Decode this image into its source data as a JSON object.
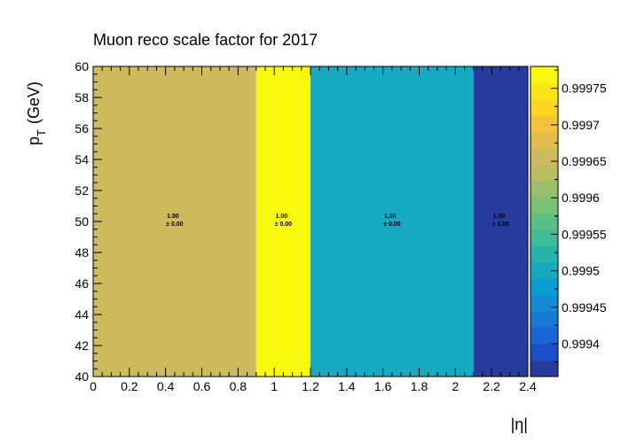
{
  "chart_data": {
    "type": "heatmap",
    "title": "Muon reco scale factor for 2017",
    "xlabel": "|η|",
    "ylabel": "p_T (GeV)",
    "ylabel_main": "p",
    "ylabel_sub": "T",
    "ylabel_unit": "(GeV)",
    "xlim": [
      0,
      2.4
    ],
    "ylim": [
      40,
      60
    ],
    "x_ticks": [
      0,
      0.2,
      0.4,
      0.6,
      0.8,
      1,
      1.2,
      1.4,
      1.6,
      1.8,
      2,
      2.2,
      2.4
    ],
    "x_tick_labels": [
      "0",
      "0.2",
      "0.4",
      "0.6",
      "0.8",
      "1",
      "1.2",
      "1.4",
      "1.6",
      "1.8",
      "2",
      "2.2",
      "2.4"
    ],
    "y_ticks": [
      40,
      42,
      44,
      46,
      48,
      50,
      52,
      54,
      56,
      58,
      60
    ],
    "y_tick_labels": [
      "40",
      "42",
      "44",
      "46",
      "48",
      "50",
      "52",
      "54",
      "56",
      "58",
      "60"
    ],
    "x_bin_edges": [
      0,
      0.9,
      1.2,
      2.1,
      2.4
    ],
    "y_bin_edges": [
      40,
      60
    ],
    "values": [
      [
        0.99966,
        0.99978,
        0.99949,
        0.99936
      ]
    ],
    "cell_labels": [
      {
        "value": "1.00",
        "error": "± 0.00"
      },
      {
        "value": "1.00",
        "error": "± 0.00"
      },
      {
        "value": "1.00",
        "error": "± 0.00"
      },
      {
        "value": "1.00",
        "error": "± 0.00"
      }
    ],
    "zlim": [
      0.999355,
      0.99978
    ],
    "z_ticks": [
      0.9994,
      0.99945,
      0.9995,
      0.99955,
      0.9996,
      0.99965,
      0.9997,
      0.99975
    ],
    "z_tick_labels": [
      "0.9994",
      "0.99945",
      "0.9995",
      "0.99955",
      "0.9996",
      "0.99965",
      "0.9997",
      "0.99975"
    ],
    "palette": [
      "#263d9e",
      "#1b50c9",
      "#1a64d5",
      "#1779d5",
      "#138bd4",
      "#0a9dcf",
      "#17a9c2",
      "#26b3ac",
      "#3dbb9a",
      "#5abf86",
      "#7bc177",
      "#9bbf6c",
      "#b8bc63",
      "#cdb95e",
      "#e1bb4c",
      "#f4c338",
      "#fdd420",
      "#fbe716",
      "#f8f90e"
    ],
    "grid": false,
    "legend": "colorbar-right"
  }
}
